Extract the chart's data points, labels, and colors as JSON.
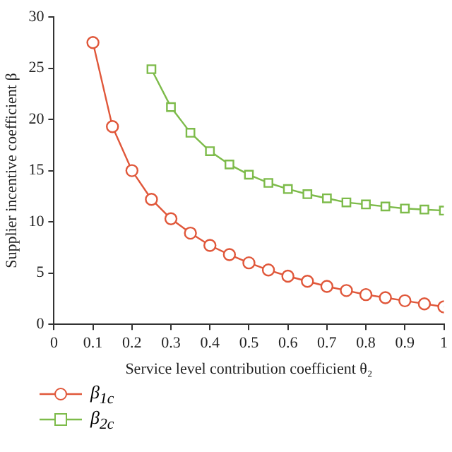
{
  "chart_data": {
    "type": "line",
    "xlabel": "Service level contribution coefficient θ₂",
    "ylabel": "Supplier incentive coefficient β",
    "x": [
      0.1,
      0.15,
      0.2,
      0.25,
      0.3,
      0.35,
      0.4,
      0.45,
      0.5,
      0.55,
      0.6,
      0.65,
      0.7,
      0.75,
      0.8,
      0.85,
      0.9,
      0.95,
      1.0
    ],
    "series": [
      {
        "name": "β$_{1c}$",
        "color": "#e0573a",
        "marker": "circle",
        "values": [
          27.5,
          19.3,
          15.0,
          12.2,
          10.3,
          8.9,
          7.7,
          6.8,
          6.0,
          5.3,
          4.7,
          4.2,
          3.7,
          3.3,
          2.9,
          2.6,
          2.3,
          2.0,
          1.7
        ]
      },
      {
        "name": "β$_{2c}$",
        "color": "#7dbb4a",
        "marker": "square",
        "values": [
          null,
          null,
          null,
          24.9,
          21.2,
          18.7,
          16.9,
          15.6,
          14.6,
          13.8,
          13.2,
          12.7,
          12.3,
          11.9,
          11.7,
          11.5,
          11.3,
          11.2,
          11.1
        ]
      }
    ],
    "xlim": [
      0,
      1
    ],
    "xticks": [
      0,
      0.1,
      0.2,
      0.3,
      0.4,
      0.5,
      0.6,
      0.7,
      0.8,
      0.9,
      1
    ],
    "ylim": [
      0,
      30
    ],
    "yticks": [
      0,
      5,
      10,
      15,
      20,
      25,
      30
    ],
    "grid": false,
    "legend": "bottom left"
  }
}
